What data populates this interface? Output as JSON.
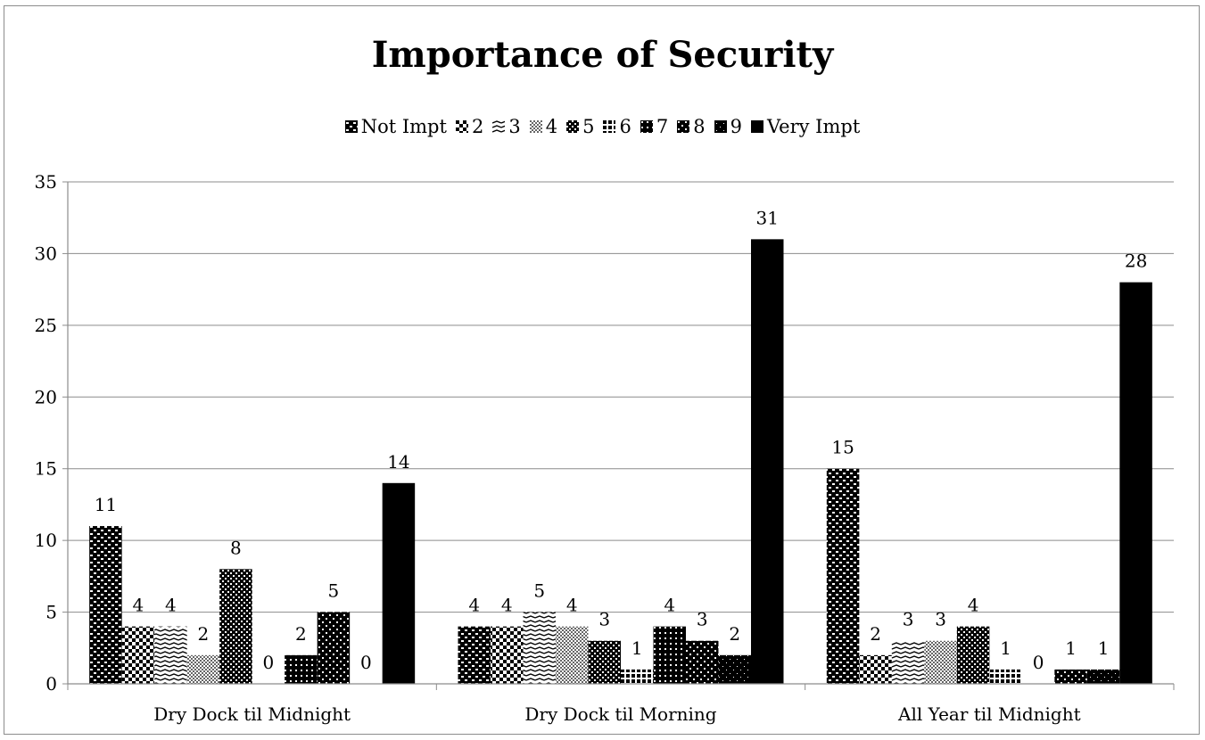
{
  "chart_data": {
    "type": "bar",
    "title": "Importance of Security",
    "xlabel": "",
    "ylabel": "",
    "ylim": [
      0,
      35
    ],
    "yticks": [
      0,
      5,
      10,
      15,
      20,
      25,
      30,
      35
    ],
    "grid": true,
    "legend_position": "top",
    "categories": [
      "Dry Dock til Midnight",
      "Dry Dock til Morning",
      "All Year til Midnight"
    ],
    "series": [
      {
        "name": "Not Impt",
        "values": [
          11,
          4,
          15
        ]
      },
      {
        "name": "2",
        "values": [
          4,
          4,
          2
        ]
      },
      {
        "name": "3",
        "values": [
          4,
          5,
          3
        ]
      },
      {
        "name": "4",
        "values": [
          2,
          4,
          3
        ]
      },
      {
        "name": "5",
        "values": [
          8,
          3,
          4
        ]
      },
      {
        "name": "6",
        "values": [
          0,
          1,
          1
        ]
      },
      {
        "name": "7",
        "values": [
          2,
          4,
          0
        ]
      },
      {
        "name": "8",
        "values": [
          5,
          3,
          1
        ]
      },
      {
        "name": "9",
        "values": [
          0,
          2,
          1
        ]
      },
      {
        "name": "Very Impt",
        "values": [
          14,
          31,
          28
        ]
      }
    ]
  }
}
